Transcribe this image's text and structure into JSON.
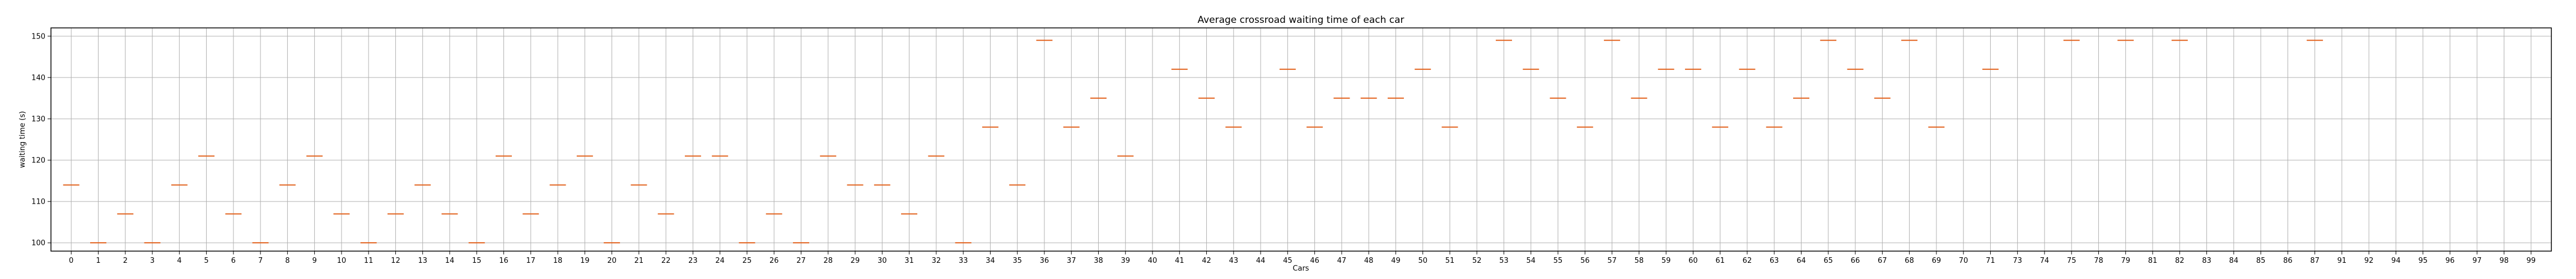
{
  "chart_data": {
    "type": "box",
    "title": "Average crossroad waiting time of each car",
    "xlabel": "Cars",
    "ylabel": "waiting time (s)",
    "ylim": [
      98,
      152
    ],
    "yticks": [
      100,
      110,
      120,
      130,
      140,
      150
    ],
    "grid": true,
    "median_color": "#e2611b",
    "categories": [
      "0",
      "1",
      "2",
      "3",
      "4",
      "5",
      "6",
      "7",
      "8",
      "9",
      "10",
      "11",
      "12",
      "13",
      "14",
      "15",
      "16",
      "17",
      "18",
      "19",
      "20",
      "21",
      "22",
      "23",
      "24",
      "25",
      "26",
      "27",
      "28",
      "29",
      "30",
      "31",
      "32",
      "33",
      "34",
      "35",
      "36",
      "37",
      "38",
      "39",
      "40",
      "41",
      "42",
      "43",
      "44",
      "45",
      "46",
      "47",
      "48",
      "49",
      "50",
      "51",
      "52",
      "53",
      "54",
      "55",
      "56",
      "57",
      "58",
      "59",
      "60",
      "61",
      "62",
      "63",
      "64",
      "65",
      "66",
      "67",
      "68",
      "69",
      "70",
      "71",
      "73",
      "74",
      "75",
      "78",
      "79",
      "81",
      "82",
      "83",
      "84",
      "85",
      "86",
      "87",
      "91",
      "92",
      "94",
      "95",
      "96",
      "97",
      "98",
      "99"
    ],
    "values": [
      114,
      100,
      107,
      100,
      114,
      121,
      107,
      100,
      114,
      121,
      107,
      100,
      107,
      114,
      107,
      100,
      121,
      107,
      114,
      121,
      100,
      114,
      107,
      121,
      121,
      100,
      107,
      100,
      121,
      114,
      114,
      107,
      121,
      100,
      128,
      114,
      149,
      128,
      135,
      121,
      null,
      142,
      135,
      128,
      null,
      142,
      128,
      135,
      135,
      135,
      142,
      128,
      null,
      149,
      142,
      135,
      128,
      149,
      135,
      142,
      142,
      128,
      142,
      128,
      135,
      149,
      142,
      135,
      149,
      128,
      null,
      142,
      null,
      null,
      149,
      null,
      149,
      null,
      149,
      null,
      null,
      null,
      null,
      149,
      null,
      null,
      null,
      null,
      null,
      null,
      null,
      null
    ]
  }
}
